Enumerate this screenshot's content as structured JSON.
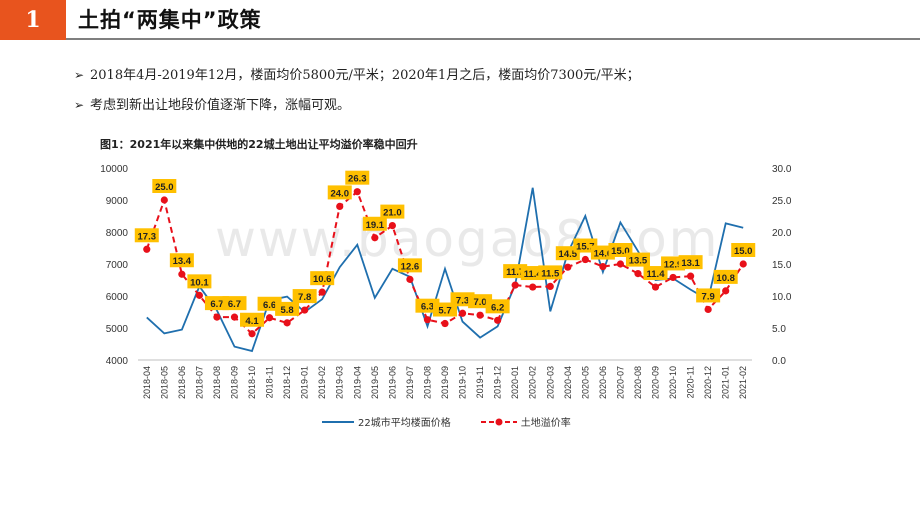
{
  "header": {
    "number": "1",
    "title": "土拍“两集中”政策"
  },
  "bullets": [
    {
      "mark": "➢",
      "text": "2018年4月-2019年12月，楼面均价5800元/平米；2020年1月之后，楼面均价7300元/平米；"
    },
    {
      "mark": "➢",
      "text": "考虑到新出让地段价值逐渐下降，涨幅可观。"
    }
  ],
  "watermark": "www.baogao8.com",
  "colors": {
    "accent": "#e8541e",
    "price_line": "#1f6fae",
    "premium_line": "#e8101a",
    "label_bg": "#ffc000"
  },
  "chart_data": {
    "type": "line",
    "title": "图1：2021年以来集中供地的22城土地出让平均溢价率稳中回升",
    "categories": [
      "2018-04",
      "2018-05",
      "2018-06",
      "2018-07",
      "2018-08",
      "2018-09",
      "2018-10",
      "2018-11",
      "2018-12",
      "2019-01",
      "2019-02",
      "2019-03",
      "2019-04",
      "2019-05",
      "2019-06",
      "2019-07",
      "2019-08",
      "2019-09",
      "2019-10",
      "2019-11",
      "2019-12",
      "2020-01",
      "2020-02",
      "2020-03",
      "2020-04",
      "2020-05",
      "2020-06",
      "2020-07",
      "2020-08",
      "2020-09",
      "2020-10",
      "2020-11",
      "2020-12",
      "2021-01",
      "2021-02"
    ],
    "y_left": {
      "ticks": [
        "4000",
        "5000",
        "6000",
        "7000",
        "8000",
        "9000",
        "10000"
      ],
      "ylim": [
        4000,
        10000
      ]
    },
    "y_right": {
      "ticks": [
        "0.0",
        "5.0",
        "10.0",
        "15.0",
        "20.0",
        "25.0",
        "30.0"
      ],
      "ylim": [
        0,
        30
      ]
    },
    "series": [
      {
        "name": "22城市平均楼面价格",
        "axis": "left",
        "style": "solid",
        "values": [
          5330,
          4830,
          4950,
          6300,
          5550,
          4420,
          4280,
          5870,
          5980,
          5500,
          5900,
          6900,
          7600,
          5940,
          6850,
          6600,
          5050,
          6850,
          5200,
          4700,
          5050,
          6350,
          9380,
          5520,
          7350,
          8500,
          6750,
          8300,
          7400,
          6500,
          6550,
          6200,
          5880,
          8270,
          8130
        ]
      },
      {
        "name": "土地溢价率",
        "axis": "right",
        "style": "dashed",
        "values": [
          17.3,
          25.0,
          13.4,
          10.1,
          6.7,
          6.7,
          4.1,
          6.6,
          5.8,
          7.8,
          10.6,
          24.0,
          26.3,
          19.1,
          21.0,
          12.6,
          6.3,
          5.7,
          7.3,
          7.0,
          6.2,
          11.7,
          11.4,
          11.5,
          14.5,
          15.7,
          14.6,
          15.0,
          13.5,
          11.4,
          12.9,
          13.1,
          7.9,
          10.8,
          15.0
        ],
        "labels": [
          "17.3",
          "25.0",
          "13.4",
          "10.1",
          "6.7",
          "6.7",
          "4.1",
          "6.6",
          "5.8",
          "7.8",
          "10.6",
          "24.0",
          "26.3",
          "19.1",
          "21.0",
          "12.6",
          "6.3",
          "5.7",
          "7.3",
          "7.0",
          "6.2",
          "11.7",
          "11.4",
          "11.5",
          "14.5",
          "15.7",
          "14.6",
          "15.0",
          "13.5",
          "11.4",
          "12.9",
          "13.1",
          "7.9",
          "10.8",
          "15.0"
        ]
      }
    ]
  }
}
